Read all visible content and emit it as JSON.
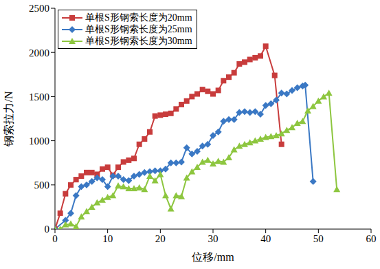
{
  "chart_data": {
    "type": "line",
    "x_label": "位移/mm",
    "y_label": "钢索拉力/N",
    "xlim": [
      0,
      60
    ],
    "xticks": [
      0,
      10,
      20,
      30,
      40,
      50,
      60
    ],
    "ylim": [
      0,
      2500
    ],
    "yticks": [
      0,
      500,
      1000,
      1500,
      2000,
      2500
    ],
    "grid": false,
    "legend": "upper left",
    "series": [
      {
        "name": "单根S形钢索长度为20mm",
        "color": "#c83c3c",
        "marker": "square",
        "x": [
          0,
          1,
          2,
          3,
          4,
          5,
          6,
          7,
          8,
          9,
          10,
          11,
          12,
          13,
          14,
          15,
          16,
          17,
          18,
          19,
          20,
          21,
          22,
          23,
          24,
          25,
          26,
          27,
          28,
          29,
          30,
          31,
          32,
          33,
          34,
          35,
          36,
          37,
          38,
          39,
          40,
          41.7,
          43
        ],
        "values": [
          0,
          180,
          400,
          500,
          560,
          600,
          640,
          640,
          620,
          680,
          700,
          610,
          700,
          760,
          780,
          800,
          960,
          1020,
          1100,
          1280,
          1290,
          1300,
          1310,
          1360,
          1410,
          1450,
          1500,
          1530,
          1580,
          1560,
          1530,
          1570,
          1680,
          1720,
          1770,
          1870,
          1890,
          1920,
          1940,
          1960,
          2070,
          1740,
          960
        ]
      },
      {
        "name": "单根S形钢索长度为25mm",
        "color": "#3a78c4",
        "marker": "diamond",
        "x": [
          0,
          2,
          3,
          4,
          5,
          6,
          7,
          8,
          9,
          10,
          11,
          12,
          13,
          14,
          15,
          16,
          17,
          18,
          19,
          20,
          21,
          22,
          23,
          24,
          25,
          26,
          27,
          28,
          29,
          30,
          31,
          32,
          33,
          34,
          35,
          36,
          37,
          38,
          39,
          40,
          41,
          42,
          43,
          44,
          45,
          46,
          47,
          47.5,
          49
        ],
        "values": [
          0,
          100,
          180,
          380,
          480,
          500,
          540,
          580,
          560,
          480,
          600,
          600,
          560,
          550,
          600,
          620,
          640,
          650,
          660,
          660,
          680,
          750,
          750,
          760,
          920,
          850,
          880,
          940,
          960,
          1060,
          1100,
          1220,
          1240,
          1240,
          1320,
          1330,
          1320,
          1330,
          1300,
          1400,
          1420,
          1460,
          1540,
          1530,
          1570,
          1600,
          1620,
          1630,
          540
        ]
      },
      {
        "name": "单根S形钢索长度为30mm",
        "color": "#8dc63f",
        "marker": "triangle",
        "x": [
          0,
          1,
          2,
          3,
          4,
          5,
          6,
          7,
          8,
          9,
          10,
          11,
          12,
          13,
          14,
          15,
          16,
          17,
          18,
          19,
          20,
          21,
          22,
          23,
          24,
          25,
          26,
          27,
          28,
          29,
          30,
          31,
          32,
          33,
          34,
          35,
          36,
          37,
          38,
          39,
          40,
          41,
          42,
          43,
          44,
          45,
          46,
          47,
          48,
          49,
          50,
          51,
          52,
          53.5
        ],
        "values": [
          0,
          0,
          50,
          60,
          30,
          140,
          200,
          250,
          300,
          330,
          360,
          380,
          490,
          480,
          460,
          460,
          470,
          450,
          600,
          550,
          620,
          380,
          230,
          380,
          370,
          580,
          650,
          700,
          760,
          780,
          740,
          770,
          760,
          810,
          900,
          940,
          960,
          980,
          1000,
          1020,
          1040,
          1050,
          1060,
          1080,
          1120,
          1150,
          1200,
          1220,
          1340,
          1390,
          1450,
          1500,
          1540,
          450
        ]
      }
    ]
  }
}
